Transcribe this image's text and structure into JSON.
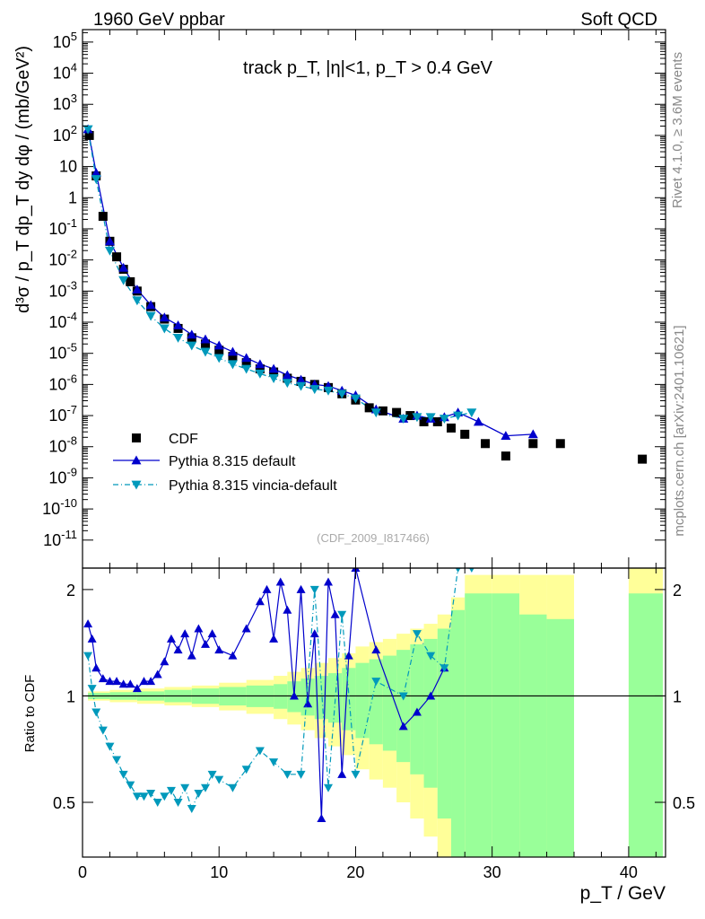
{
  "header": {
    "left": "1960 GeV ppbar",
    "right": "Soft QCD"
  },
  "side": {
    "rivet": "Rivet 4.1.0, ≥ 3.6M events",
    "mcplots": "mcplots.cern.ch [arXiv:2401.10621]"
  },
  "watermark": "(CDF_2009_I817466)",
  "chart_data": {
    "type": "scatter",
    "title": "track p_T, |η|<1, p_T > 0.4 GeV",
    "xlabel": "p_T / GeV",
    "ylabel": "d³σ / p_T dp_T dy dφ / (mb/GeV²)",
    "ratio_ylabel": "Ratio to CDF",
    "xlim": [
      0,
      42.7
    ],
    "ylim_log10": [
      -11.9,
      5.4
    ],
    "ratio_ylim": [
      0.35,
      2.3
    ],
    "x_ticks": [
      0,
      10,
      20,
      30,
      40
    ],
    "y_ticks_exp": [
      -11,
      -10,
      -9,
      -8,
      -7,
      -6,
      -5,
      -4,
      -3,
      -2,
      -1,
      0,
      1,
      2,
      3,
      4,
      5
    ],
    "y_tick_labels": [
      "10^-11",
      "10^-10",
      "10^-9",
      "10^-8",
      "10^-7",
      "10^-6",
      "10^-5",
      "10^-4",
      "10^-3",
      "10^-2",
      "10^-1",
      "1",
      "10",
      "10^2",
      "10^3",
      "10^4",
      "10^5"
    ],
    "ratio_ticks": [
      0.5,
      1,
      2
    ],
    "ratio_tick_labels": [
      "0.5",
      "1",
      "2"
    ],
    "legend": [
      {
        "label": "CDF",
        "marker": "square",
        "color": "#000000"
      },
      {
        "label": "Pythia 8.315 default",
        "marker": "triangle-up",
        "color": "#0000cc",
        "dash": "solid"
      },
      {
        "label": "Pythia 8.315 vincia-default",
        "marker": "triangle-down",
        "color": "#0099bb",
        "dash": "dashdot"
      }
    ],
    "series": [
      {
        "name": "CDF",
        "x": [
          0.5,
          1,
          1.5,
          2,
          2.5,
          3,
          3.5,
          4,
          5,
          6,
          7,
          8,
          9,
          10,
          11,
          12,
          13,
          14,
          15,
          16,
          17,
          18,
          19,
          20,
          21,
          22,
          23,
          24,
          25,
          26,
          27,
          28,
          29.5,
          31,
          33,
          35,
          41
        ],
        "y_log10": [
          2.0,
          0.7,
          -0.6,
          -1.4,
          -1.9,
          -2.3,
          -2.7,
          -3.0,
          -3.5,
          -3.9,
          -4.2,
          -4.5,
          -4.7,
          -4.9,
          -5.1,
          -5.3,
          -5.5,
          -5.6,
          -5.8,
          -5.9,
          -6.0,
          -6.1,
          -6.3,
          -6.5,
          -6.75,
          -6.85,
          -6.9,
          -7.0,
          -7.2,
          -7.2,
          -7.4,
          -7.6,
          -7.9,
          -8.3,
          -7.9,
          -7.9,
          -8.4
        ]
      },
      {
        "name": "Pythia 8.315 default",
        "x": [
          0.4,
          1,
          2,
          3,
          4,
          5,
          6,
          7,
          8,
          9,
          10,
          11,
          12,
          13,
          14,
          15,
          16,
          17,
          18,
          19,
          20,
          21.5,
          23.5,
          24.5,
          25.5,
          26.5,
          27.5,
          29,
          31,
          33
        ],
        "y_log10": [
          2.2,
          0.8,
          -1.4,
          -2.25,
          -2.95,
          -3.45,
          -3.85,
          -4.1,
          -4.4,
          -4.55,
          -4.75,
          -4.95,
          -5.15,
          -5.35,
          -5.5,
          -5.7,
          -5.85,
          -6.0,
          -6.05,
          -6.2,
          -6.35,
          -6.8,
          -7.1,
          -7.0,
          -7.1,
          -7.05,
          -6.9,
          -7.2,
          -7.65,
          -7.6
        ]
      },
      {
        "name": "Pythia 8.315 vincia-default",
        "x": [
          0.4,
          1,
          2,
          3,
          4,
          5,
          6,
          7,
          8,
          9,
          10,
          11,
          12,
          13,
          14,
          15,
          16,
          17,
          18,
          19,
          20,
          21.5,
          23.5,
          24.5,
          25.5,
          26.5,
          27.5,
          28.5
        ],
        "y_log10": [
          2.2,
          0.6,
          -1.7,
          -2.65,
          -3.3,
          -3.8,
          -4.2,
          -4.5,
          -4.75,
          -4.95,
          -5.15,
          -5.35,
          -5.5,
          -5.65,
          -5.8,
          -5.95,
          -6.05,
          -6.15,
          -6.2,
          -6.3,
          -6.45,
          -6.9,
          -7.1,
          -7.05,
          -7.05,
          -7.1,
          -7.0,
          -6.9
        ]
      }
    ],
    "ratio_series": [
      {
        "name": "Pythia 8.315 default",
        "x": [
          0.4,
          0.7,
          1,
          1.5,
          2,
          2.5,
          3,
          3.5,
          4,
          4.5,
          5,
          5.5,
          6,
          6.5,
          7,
          7.5,
          8,
          8.5,
          9,
          9.5,
          10,
          11,
          12,
          13,
          13.5,
          14,
          14.5,
          15,
          15.5,
          16,
          16.5,
          17,
          17.5,
          18,
          18.5,
          19,
          19.5,
          20,
          21.5,
          23.5,
          24.5,
          25.5,
          26.5
        ],
        "y": [
          1.6,
          1.45,
          1.2,
          1.12,
          1.1,
          1.1,
          1.08,
          1.08,
          1.05,
          1.1,
          1.1,
          1.15,
          1.25,
          1.45,
          1.35,
          1.5,
          1.3,
          1.55,
          1.4,
          1.5,
          1.35,
          1.3,
          1.55,
          1.85,
          2.0,
          1.45,
          2.1,
          1.75,
          1.0,
          2.0,
          0.95,
          1.5,
          0.45,
          2.1,
          1.7,
          0.6,
          1.3,
          2.3,
          1.35,
          0.82,
          0.9,
          1.0,
          1.2
        ]
      },
      {
        "name": "Pythia 8.315 vincia-default",
        "x": [
          0.4,
          0.7,
          1,
          1.5,
          2,
          2.5,
          3,
          3.5,
          4,
          4.5,
          5,
          5.5,
          6,
          6.5,
          7,
          7.5,
          8,
          8.5,
          9,
          9.5,
          10,
          11,
          12,
          13,
          14,
          15,
          16,
          17,
          18,
          19,
          20,
          21.5,
          23.5,
          24.5,
          25.5,
          26.5,
          27.5,
          28.5
        ],
        "y": [
          1.3,
          1.05,
          0.9,
          0.8,
          0.72,
          0.66,
          0.6,
          0.56,
          0.52,
          0.52,
          0.53,
          0.5,
          0.52,
          0.54,
          0.5,
          0.55,
          0.48,
          0.53,
          0.55,
          0.6,
          0.58,
          0.55,
          0.62,
          0.7,
          0.65,
          0.6,
          0.6,
          2.0,
          0.55,
          1.7,
          0.6,
          1.1,
          1.0,
          1.5,
          1.3,
          1.2,
          2.3,
          2.3
        ]
      }
    ],
    "uncertainty_bands": {
      "x_edges": [
        0.4,
        2,
        4,
        6,
        8,
        10,
        12,
        14,
        15,
        16,
        17,
        18,
        19,
        20,
        21,
        22,
        23,
        24,
        25,
        26,
        27,
        28,
        30,
        32,
        34,
        36,
        40,
        42.5
      ],
      "yellow_half_width": [
        0.03,
        0.04,
        0.05,
        0.06,
        0.07,
        0.09,
        0.11,
        0.14,
        0.17,
        0.2,
        0.24,
        0.28,
        0.32,
        0.38,
        0.42,
        0.45,
        0.5,
        0.55,
        0.6,
        0.7,
        0.9,
        1.2,
        1.2,
        1.2,
        1.2,
        0,
        1.3
      ],
      "green_half_width": [
        0.02,
        0.025,
        0.03,
        0.04,
        0.05,
        0.06,
        0.07,
        0.08,
        0.1,
        0.12,
        0.14,
        0.16,
        0.2,
        0.24,
        0.27,
        0.3,
        0.35,
        0.4,
        0.45,
        0.55,
        0.75,
        0.95,
        0.95,
        0.7,
        0.65,
        0,
        0.95
      ]
    }
  }
}
